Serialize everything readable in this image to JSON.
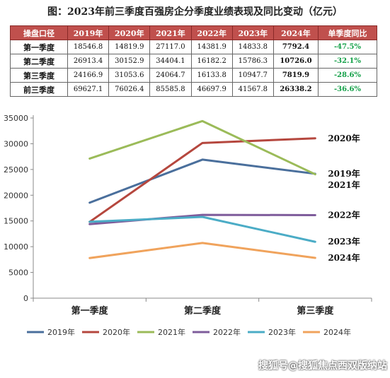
{
  "title": "图：2023年前三季度百强房企分季度业绩表现及同比变动（亿元）",
  "table": {
    "headers": [
      "操盘口径",
      "2019年",
      "2020年",
      "2021年",
      "2022年",
      "2023年",
      "2024年",
      "单季度同比"
    ],
    "rows": [
      {
        "label": "第一季度",
        "values": [
          "18546.8",
          "14819.9",
          "27117.0",
          "14381.9",
          "14833.8",
          "7792.4"
        ],
        "yoy": "-47.5%"
      },
      {
        "label": "第二季度",
        "values": [
          "26913.4",
          "30152.9",
          "34404.1",
          "16182.2",
          "15786.3",
          "10726.0"
        ],
        "yoy": "-32.1%"
      },
      {
        "label": "第三季度",
        "values": [
          "24166.9",
          "31053.6",
          "24064.7",
          "16133.8",
          "10947.7",
          "7819.9"
        ],
        "yoy": "-28.6%"
      },
      {
        "label": "前三季度",
        "values": [
          "69627.1",
          "76026.4",
          "85585.8",
          "46697.9",
          "41567.8",
          "26338.2"
        ],
        "yoy": "-36.6%"
      }
    ]
  },
  "chart_data": {
    "type": "line",
    "categories": [
      "第一季度",
      "第二季度",
      "第三季度"
    ],
    "ylim": [
      0,
      35000
    ],
    "yticks": [
      0,
      5000,
      10000,
      15000,
      20000,
      25000,
      30000,
      35000
    ],
    "grid": false,
    "legend": "bottom",
    "series": [
      {
        "name": "2019年",
        "values": [
          18546.8,
          26913.4,
          24166.9
        ],
        "color": "#4a6f9c"
      },
      {
        "name": "2020年",
        "values": [
          14819.9,
          30152.9,
          31053.6
        ],
        "color": "#b5473e"
      },
      {
        "name": "2021年",
        "values": [
          27117.0,
          34404.1,
          24064.7
        ],
        "color": "#9bbb59"
      },
      {
        "name": "2022年",
        "values": [
          14381.9,
          16182.2,
          16133.8
        ],
        "color": "#7e5c9b"
      },
      {
        "name": "2023年",
        "values": [
          14833.8,
          15786.3,
          10947.7
        ],
        "color": "#4bacc6"
      },
      {
        "name": "2024年",
        "values": [
          7792.4,
          10726.0,
          7819.9
        ],
        "color": "#f0a35c"
      }
    ]
  },
  "watermark": "搜狐号@搜狐焦点西双版纳站"
}
